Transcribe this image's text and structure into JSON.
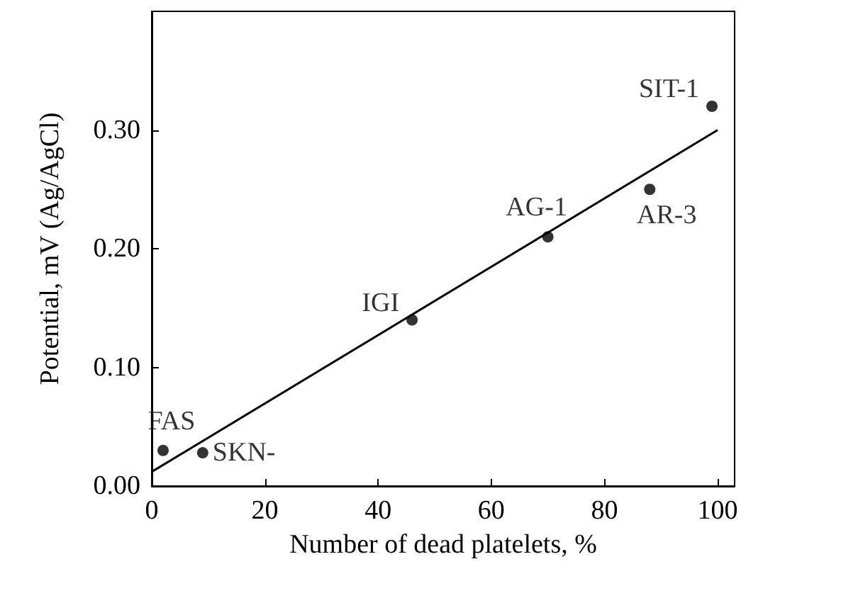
{
  "chart_data": {
    "type": "scatter",
    "xlabel": "Number of dead platelets, %",
    "ylabel": "Potential, mV (Ag/AgCl)",
    "xlim": [
      0,
      103
    ],
    "xticks": [
      0,
      20,
      40,
      60,
      80,
      100
    ],
    "ylim": [
      0,
      0.4
    ],
    "yticks": [
      {
        "value": 0,
        "label": "0.00"
      },
      {
        "value": 0.1,
        "label": "0.10"
      },
      {
        "value": 0.2,
        "label": "0.20"
      },
      {
        "value": 0.3,
        "label": "0.30"
      }
    ],
    "marker": "circle",
    "grid": false,
    "series": [
      {
        "color": "#000000",
        "x": [
          2,
          9,
          46,
          70,
          88,
          99
        ],
        "values": [
          0.03,
          0.028,
          0.14,
          0.21,
          0.25,
          0.32
        ]
      },
      {
        "type": "line",
        "marker": "none",
        "color": "#000000",
        "x": [
          0,
          100
        ],
        "values": [
          0.012,
          0.3
        ]
      }
    ],
    "annotations": [
      {
        "text": "FAS",
        "x": 2,
        "y": 0.03
      },
      {
        "text": "SKN-",
        "x": 9,
        "y": 0.028
      },
      {
        "text": "IGI",
        "x": 46,
        "y": 0.14
      },
      {
        "text": "AG-1",
        "x": 70,
        "y": 0.21
      },
      {
        "text": "AR-3",
        "x": 88,
        "y": 0.25
      },
      {
        "text": "SIT-1",
        "x": 99,
        "y": 0.32
      }
    ]
  }
}
